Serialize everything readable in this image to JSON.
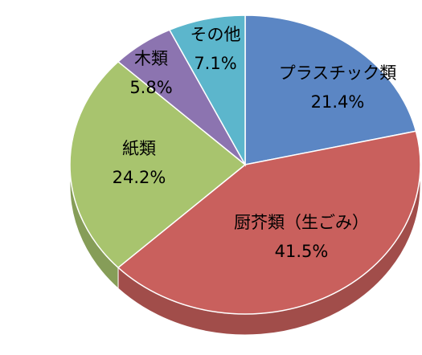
{
  "chart_data": {
    "type": "pie",
    "categories": [
      "プラスチック類",
      "厨芥類（生ごみ）",
      "紙類",
      "木類",
      "その他"
    ],
    "values": [
      21.4,
      41.5,
      24.2,
      5.8,
      7.1
    ],
    "value_labels": [
      "21.4%",
      "41.5%",
      "24.2%",
      "5.8%",
      "7.1%"
    ],
    "colors": [
      "#5b86c4",
      "#c9605d",
      "#a8c46e",
      "#8c74b0",
      "#5cb6cc"
    ]
  }
}
